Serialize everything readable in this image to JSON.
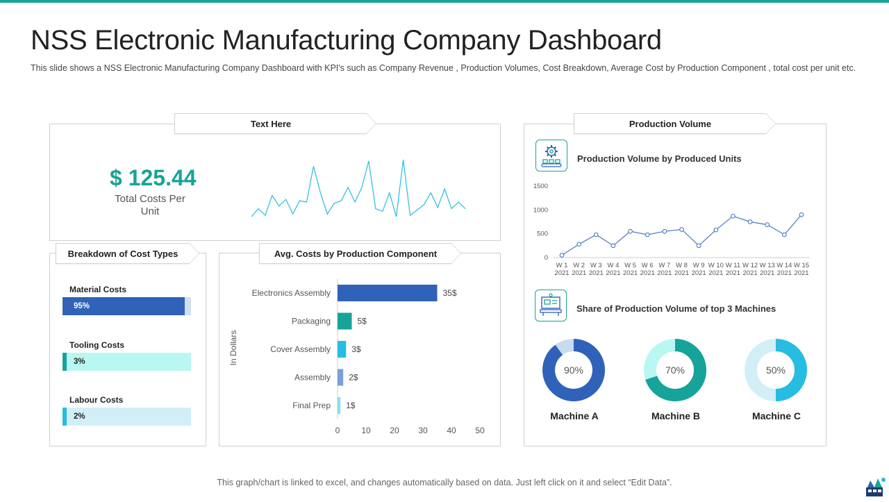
{
  "title": "NSS Electronic Manufacturing Company Dashboard",
  "subtitle": "This slide shows a NSS Electronic Manufacturing  Company Dashboard  with KPI's such as Company  Revenue  , Production Volumes, Cost Breakdown, Average  Cost by Production Component  , total cost per unit etc.",
  "colors": {
    "accent": "#17a398",
    "blue": "#2f62b8",
    "teal": "#16a39a",
    "cyan": "#27bce1",
    "light_cyan": "#b9f7f2",
    "light_blue": "#d2eff7"
  },
  "kpi_panel": {
    "tab_label": "Text Here",
    "value": "$ 125.44",
    "label": "Total Costs Per Unit",
    "sparkline": [
      6,
      12,
      7,
      22,
      14,
      19,
      8,
      18,
      17,
      44,
      24,
      8,
      16,
      18,
      28,
      17,
      28,
      48,
      12,
      10,
      24,
      6,
      49,
      7,
      11,
      15,
      24,
      13,
      27,
      12,
      17,
      12
    ]
  },
  "breakdown_panel": {
    "tab_label": "Breakdown of Cost Types",
    "items": [
      {
        "label": "Material Costs",
        "percent_text": "95%",
        "value": 95,
        "color": "#2f62b8",
        "track": "#cfe0f5",
        "text_color": "#ffffff"
      },
      {
        "label": "Tooling Costs",
        "percent_text": "3%",
        "value": 3,
        "color": "#16a39a",
        "track": "#b9f7f2",
        "text_color": "#222222"
      },
      {
        "label": "Labour Costs",
        "percent_text": "2%",
        "value": 2,
        "color": "#27bce1",
        "track": "#d2eff7",
        "text_color": "#222222"
      }
    ]
  },
  "avg_panel": {
    "tab_label": "Avg. Costs by Production Component"
  },
  "production_panel": {
    "tab_label": "Production Volume",
    "line_title": "Production Volume by Produced Units",
    "donut_title": "Share of Production Volume of top 3 Machines",
    "donuts": [
      {
        "name": "Machine A",
        "percent_text": "90%",
        "value": 90,
        "color": "#2f62b8",
        "track": "#c9dbf0"
      },
      {
        "name": "Machine B",
        "percent_text": "70%",
        "value": 70,
        "color": "#16a39a",
        "track": "#b9f7f2"
      },
      {
        "name": "Machine C",
        "percent_text": "50%",
        "value": 50,
        "color": "#27bce1",
        "track": "#d2eff7"
      }
    ]
  },
  "chart_data": [
    {
      "type": "bar",
      "orientation": "horizontal",
      "title": "Avg. Costs by Production Component",
      "ylabel": "In Dollars",
      "categories": [
        "Electronics Assembly",
        "Packaging",
        "Cover Assembly",
        "Assembly",
        "Final Prep"
      ],
      "values": [
        35,
        5,
        3,
        2,
        1
      ],
      "data_labels": [
        "35$",
        "5$",
        "3$",
        "2$",
        "1$"
      ],
      "colors": [
        "#2f62b8",
        "#16a39a",
        "#27bce1",
        "#7b9fd6",
        "#7de6f2"
      ],
      "xlim": [
        0,
        50
      ],
      "xticks": [
        0,
        10,
        20,
        30,
        40,
        50
      ]
    },
    {
      "type": "line",
      "title": "Production Volume by Produced Units",
      "x": [
        "W 1 2021",
        "W 2 2021",
        "W 3 2021",
        "W 4 2021",
        "W 5 2021",
        "W 6 2021",
        "W 7 2021",
        "W 8 2021",
        "W 9 2021",
        "W 10 2021",
        "W 11 2021",
        "W 12 2021",
        "W 13 2021",
        "W 14 2021",
        "W 15 2021"
      ],
      "x_line1": [
        "W 1",
        "W 2",
        "W 3",
        "W 4",
        "W 5",
        "W 6",
        "W 7",
        "W 8",
        "W 9",
        "W 10",
        "W 11",
        "W 12",
        "W 13",
        "W 14",
        "W 15"
      ],
      "x_line2": [
        "2021",
        "2021",
        "2021",
        "2021",
        "2021",
        "2021",
        "2021",
        "2021",
        "2021",
        "2021",
        "2021",
        "2021",
        "2021",
        "2021",
        "2021"
      ],
      "series": [
        {
          "name": "Produced Units",
          "values": [
            50,
            280,
            480,
            250,
            550,
            480,
            550,
            590,
            250,
            580,
            870,
            750,
            690,
            480,
            900
          ],
          "color": "#4a78c0"
        }
      ],
      "ylim": [
        0,
        1500
      ],
      "yticks": [
        0,
        500,
        1000,
        1500
      ]
    },
    {
      "type": "pie",
      "title": "Share of Production Volume of top 3 Machines",
      "categories": [
        "Machine A",
        "Machine B",
        "Machine C"
      ],
      "values": [
        90,
        70,
        50
      ]
    }
  ],
  "footer": "This graph/chart is linked to excel, and changes automatically based on data. Just left click on it and select “Edit Data”."
}
